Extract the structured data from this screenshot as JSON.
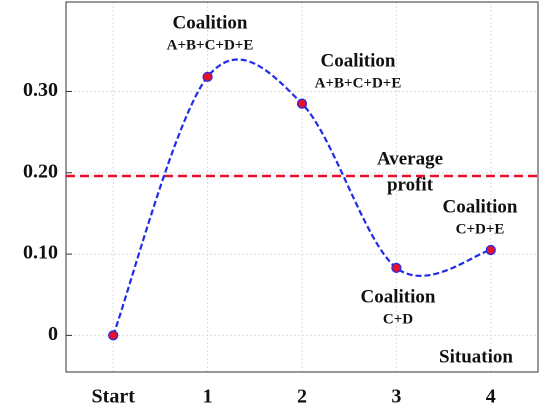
{
  "chart_data": {
    "type": "line",
    "categories": [
      "Start",
      "1",
      "2",
      "3",
      "4"
    ],
    "series": [
      {
        "name": "Profit",
        "color": "#1f2de8",
        "marker_color": "#e8102a",
        "values": [
          0,
          0.318,
          0.285,
          0.083,
          0.105
        ]
      }
    ],
    "ylim": [
      -0.045,
      0.41
    ],
    "yticks": [
      {
        "value": 0,
        "label": "0"
      },
      {
        "value": 0.1,
        "label": "0.10"
      },
      {
        "value": 0.2,
        "label": "0.20"
      },
      {
        "value": 0.3,
        "label": "0.30"
      }
    ],
    "grid": true,
    "average": {
      "value": 0.196,
      "color": "#e8102a",
      "label_lines": [
        "Average",
        "profit"
      ]
    },
    "x_label": "Situation",
    "annotations": [
      {
        "lines": [
          "Coalition",
          "A+B+C+D+E"
        ]
      },
      {
        "lines": [
          "Coalition",
          "A+B+C+D+E"
        ]
      },
      {
        "lines": [
          "Coalition",
          "C+D"
        ]
      },
      {
        "lines": [
          "Coalition",
          "C+D+E"
        ]
      }
    ]
  }
}
